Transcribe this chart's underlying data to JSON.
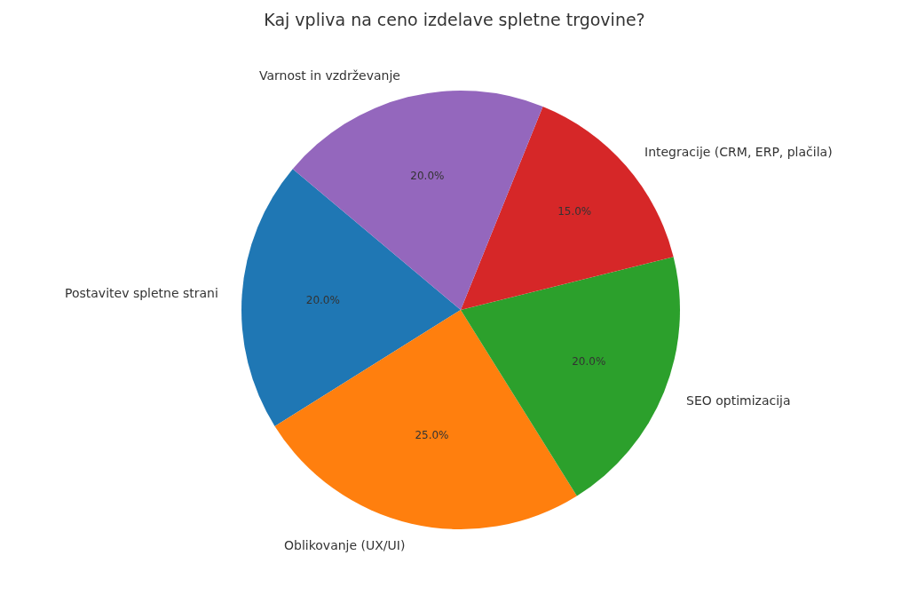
{
  "chart_data": {
    "type": "pie",
    "title": "Kaj vpliva na ceno izdelave spletne trgovine?",
    "categories": [
      "Postavitev spletne strani",
      "Oblikovanje (UX/UI)",
      "SEO optimizacija",
      "Integracije (CRM, ERP, plačila)",
      "Varnost in vzdrževanje"
    ],
    "values": [
      20,
      25,
      20,
      15,
      20
    ],
    "colors": [
      "#1f77b4",
      "#ff7f0e",
      "#2ca02c",
      "#d62728",
      "#9467bd"
    ],
    "value_labels": [
      "20.0%",
      "25.0%",
      "20.0%",
      "15.0%",
      "20.0%"
    ]
  }
}
